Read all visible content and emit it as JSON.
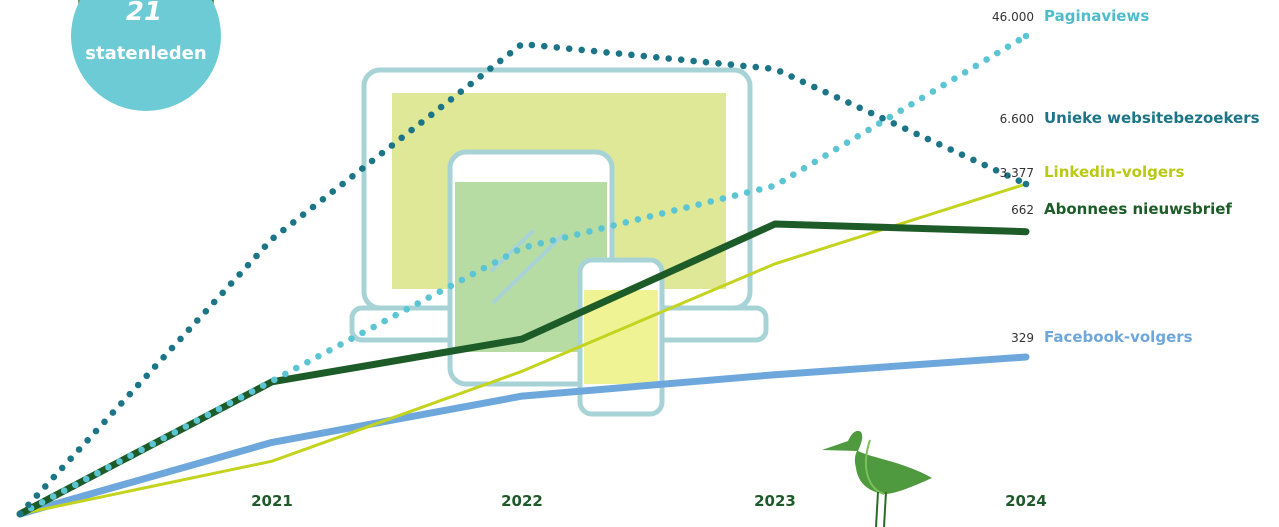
{
  "badge": {
    "number": "21",
    "label": "statenleden"
  },
  "chart_data": {
    "type": "line",
    "categories": [
      "",
      "2021",
      "2022",
      "2023",
      "2024"
    ],
    "series": [
      {
        "name": "Paginaviews",
        "end_label": "46.000",
        "color": "#5cc5d3",
        "style": "dotted",
        "values": [
          0,
          12800,
          25600,
          31600,
          46000
        ]
      },
      {
        "name": "Unieke websitebezoekers",
        "end_label": "6.600",
        "color": "#1c7587",
        "style": "dotted",
        "values": [
          0,
          5500,
          9400,
          8900,
          6600
        ]
      },
      {
        "name": "Linkedin-volgers",
        "end_label": "3.377",
        "color": "#c3d31e",
        "style": "solid",
        "values": [
          0,
          540,
          1460,
          2560,
          3377
        ]
      },
      {
        "name": "Abonnees nieuwsbrief",
        "end_label": "662",
        "color": "#1d5c28",
        "style": "thick",
        "values": [
          0,
          310,
          410,
          680,
          662
        ]
      },
      {
        "name": "Facebook-volgers",
        "end_label": "329",
        "color": "#6ea7db",
        "style": "solid",
        "values": [
          0,
          150,
          247,
          292,
          329
        ]
      }
    ]
  }
}
